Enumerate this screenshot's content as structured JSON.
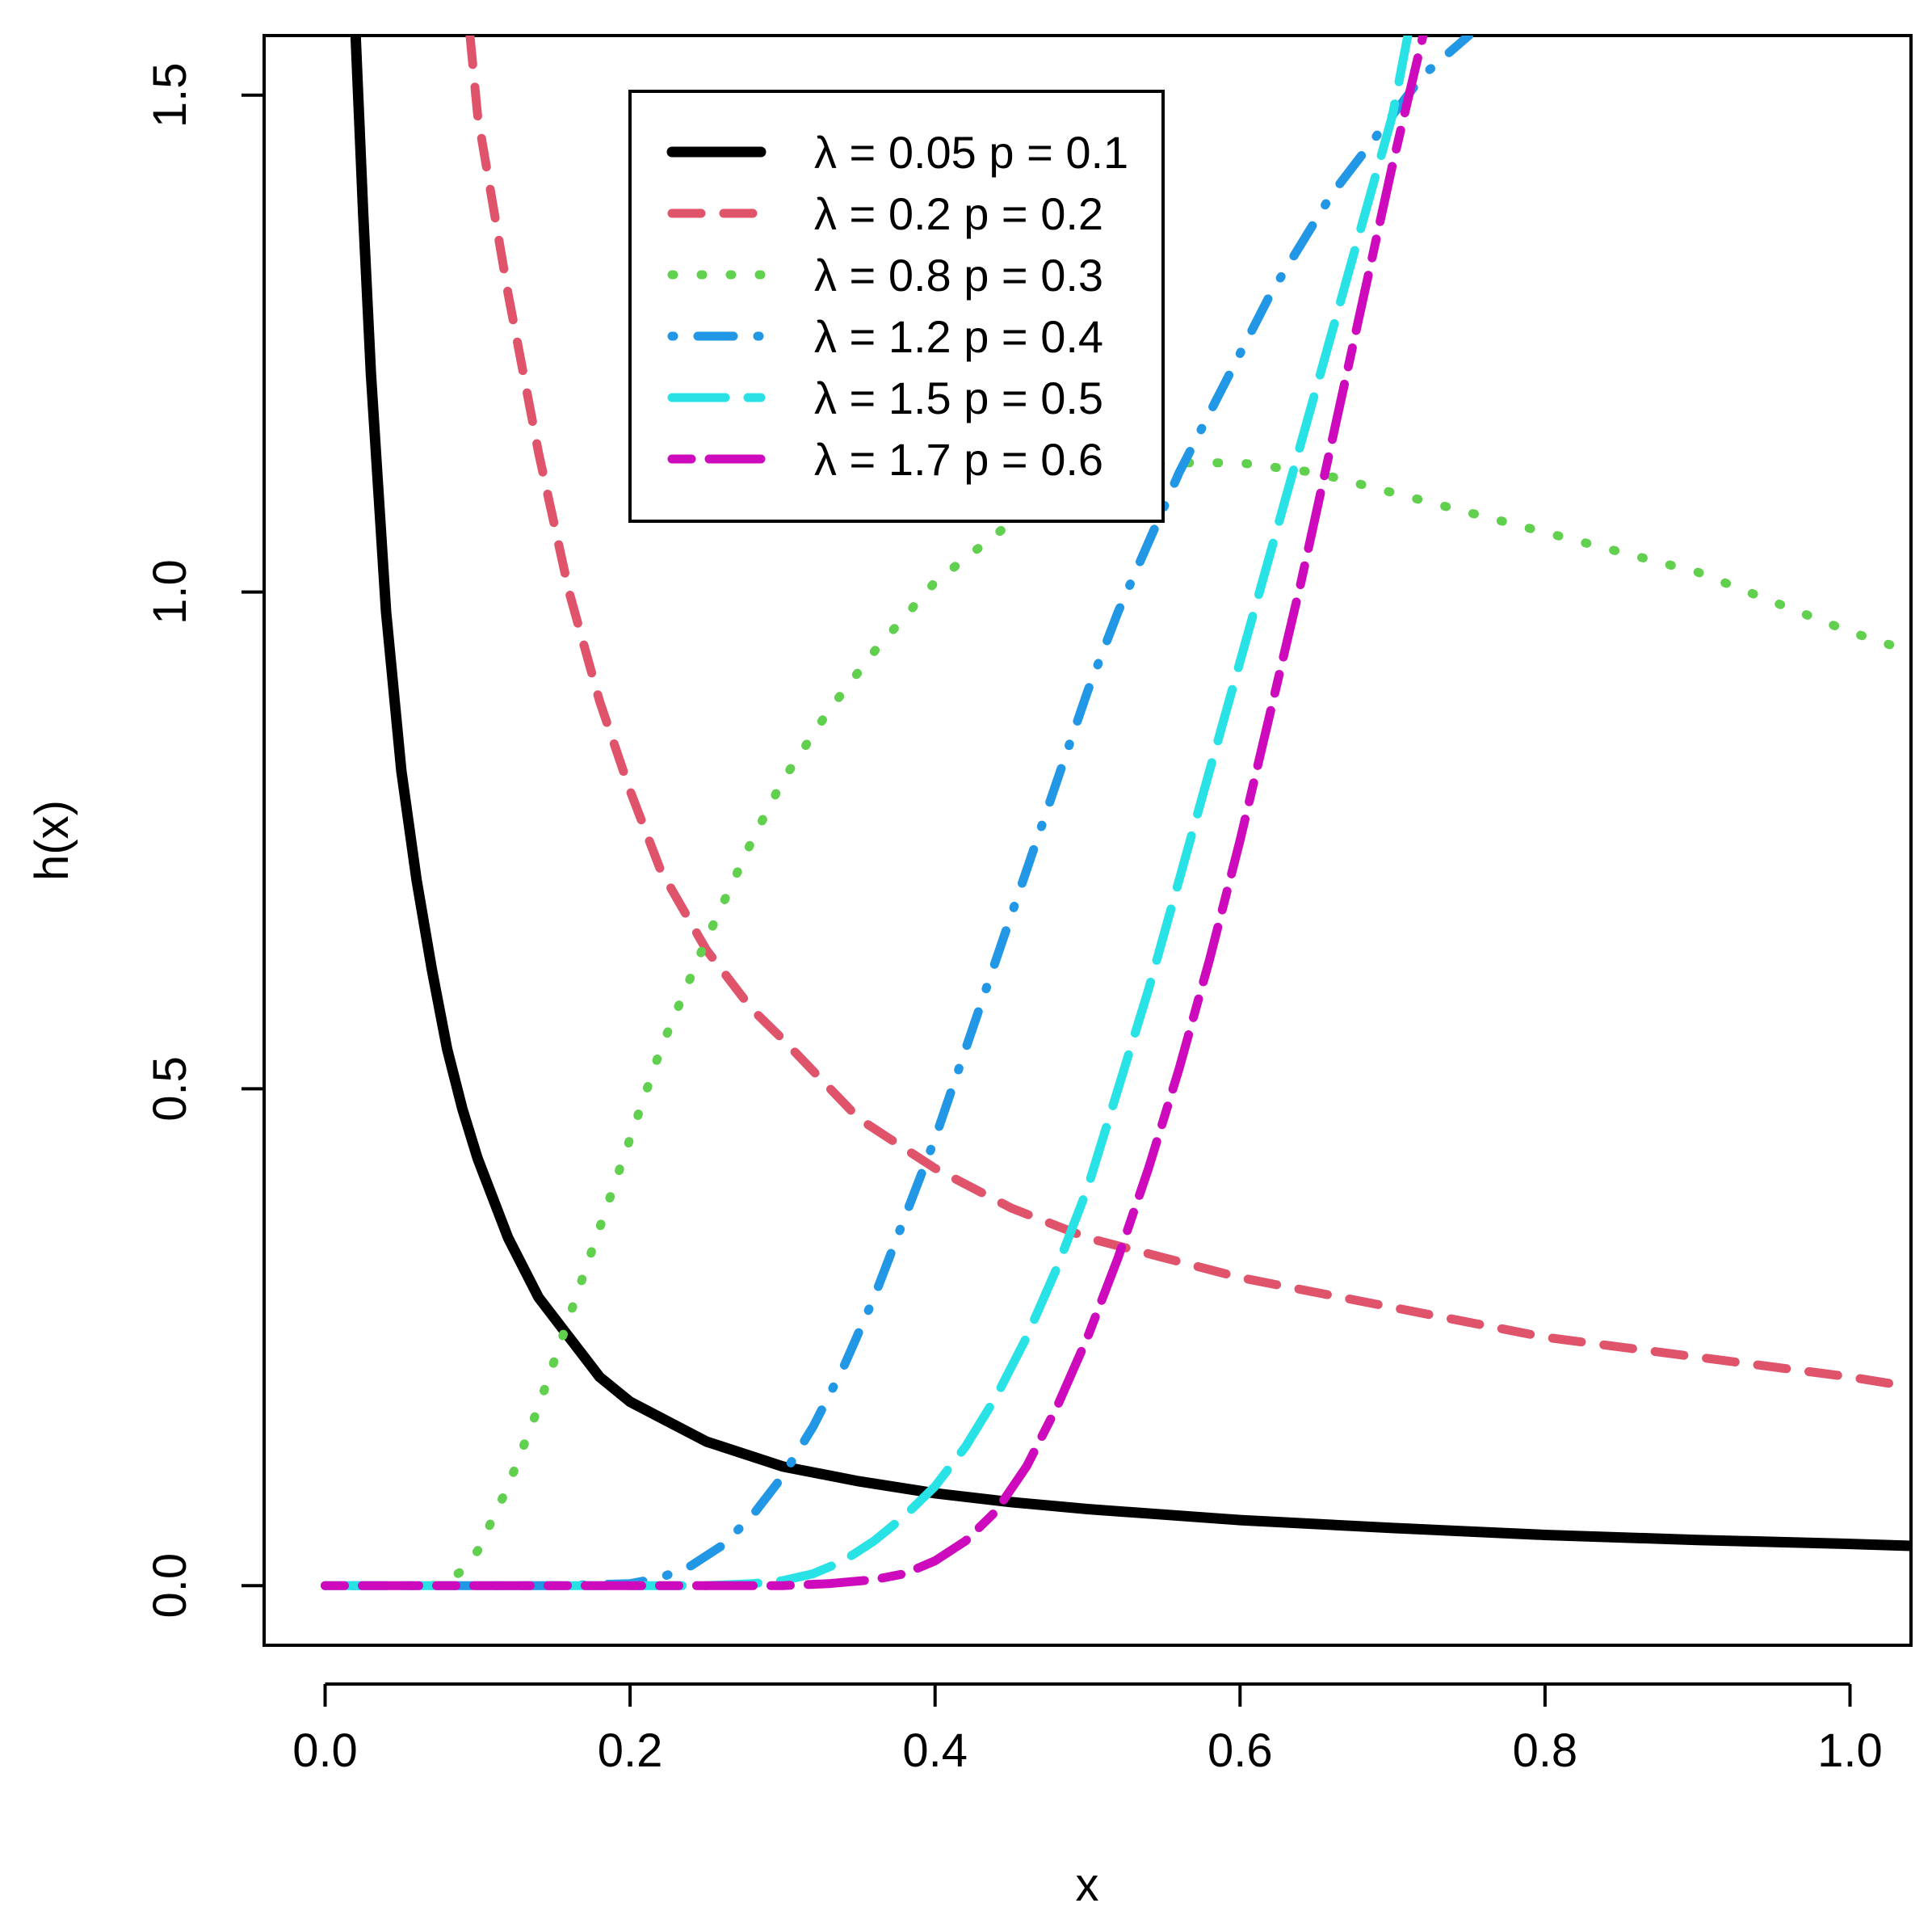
{
  "chart_data": {
    "type": "line",
    "title": "",
    "xlabel": "x",
    "ylabel": "h(x)",
    "xlim": [
      -0.04,
      1.04
    ],
    "ylim": [
      -0.06,
      1.56
    ],
    "xticks": [
      0.0,
      0.2,
      0.4,
      0.6,
      0.8,
      1.0
    ],
    "xtick_labels": [
      "0.0",
      "0.2",
      "0.4",
      "0.6",
      "0.8",
      "1.0"
    ],
    "yticks": [
      0.0,
      0.5,
      1.0,
      1.5
    ],
    "ytick_labels": [
      "0.0",
      "0.5",
      "1.0",
      "1.5"
    ],
    "grid": false,
    "legend_position": "top-center",
    "series": [
      {
        "name": "λ = 0.05  p = 0.1",
        "color": "#000000",
        "dash": "solid",
        "x": [
          0.02,
          0.025,
          0.03,
          0.04,
          0.05,
          0.06,
          0.07,
          0.08,
          0.09,
          0.1,
          0.12,
          0.14,
          0.16,
          0.18,
          0.2,
          0.25,
          0.3,
          0.35,
          0.4,
          0.45,
          0.5,
          0.6,
          0.7,
          0.8,
          0.9,
          1.0,
          1.04
        ],
        "y": [
          1.56,
          1.38,
          1.22,
          0.98,
          0.82,
          0.71,
          0.62,
          0.54,
          0.48,
          0.43,
          0.35,
          0.29,
          0.25,
          0.21,
          0.185,
          0.145,
          0.12,
          0.105,
          0.093,
          0.084,
          0.077,
          0.066,
          0.058,
          0.051,
          0.046,
          0.042,
          0.04
        ]
      },
      {
        "name": "λ = 0.2  p = 0.2",
        "color": "#DF536B",
        "dash": "dashed",
        "x": [
          0.095,
          0.1,
          0.11,
          0.12,
          0.14,
          0.16,
          0.18,
          0.2,
          0.22,
          0.25,
          0.28,
          0.3,
          0.35,
          0.4,
          0.45,
          0.5,
          0.55,
          0.6,
          0.7,
          0.8,
          0.9,
          1.0,
          1.04
        ],
        "y": [
          1.56,
          1.48,
          1.39,
          1.3,
          1.14,
          1.0,
          0.89,
          0.8,
          0.72,
          0.64,
          0.58,
          0.55,
          0.47,
          0.42,
          0.38,
          0.35,
          0.33,
          0.31,
          0.28,
          0.25,
          0.23,
          0.21,
          0.2
        ]
      },
      {
        "name": "λ = 0.8  p = 0.3",
        "color": "#61D04F",
        "dash": "dotted",
        "x": [
          0.07,
          0.08,
          0.09,
          0.1,
          0.12,
          0.14,
          0.16,
          0.18,
          0.2,
          0.22,
          0.25,
          0.28,
          0.3,
          0.33,
          0.36,
          0.4,
          0.45,
          0.5,
          0.55,
          0.6,
          0.65,
          0.7,
          0.75,
          0.8,
          0.85,
          0.9,
          0.95,
          1.0,
          1.04
        ],
        "y": [
          0.0,
          0.005,
          0.015,
          0.035,
          0.1,
          0.18,
          0.27,
          0.36,
          0.45,
          0.54,
          0.65,
          0.75,
          0.81,
          0.88,
          0.94,
          1.01,
          1.07,
          1.11,
          1.13,
          1.13,
          1.12,
          1.1,
          1.08,
          1.06,
          1.04,
          1.02,
          0.99,
          0.96,
          0.94
        ]
      },
      {
        "name": "λ = 1.2  p = 0.4",
        "color": "#2297E6",
        "dash": "dotdash",
        "x": [
          0.0,
          0.15,
          0.2,
          0.22,
          0.24,
          0.26,
          0.28,
          0.3,
          0.32,
          0.34,
          0.36,
          0.38,
          0.4,
          0.42,
          0.44,
          0.46,
          0.48,
          0.5,
          0.52,
          0.54,
          0.56,
          0.58,
          0.6,
          0.62,
          0.64,
          0.66,
          0.68,
          0.7,
          0.72,
          0.75
        ],
        "y": [
          0.0,
          0.0,
          0.002,
          0.008,
          0.02,
          0.04,
          0.07,
          0.11,
          0.16,
          0.22,
          0.29,
          0.37,
          0.45,
          0.54,
          0.63,
          0.72,
          0.81,
          0.9,
          0.98,
          1.05,
          1.12,
          1.18,
          1.24,
          1.3,
          1.35,
          1.4,
          1.44,
          1.48,
          1.52,
          1.56
        ]
      },
      {
        "name": "λ = 1.5  p = 0.5",
        "color": "#28E2E5",
        "dash": "longdash",
        "x": [
          0.0,
          0.25,
          0.28,
          0.3,
          0.32,
          0.34,
          0.36,
          0.38,
          0.4,
          0.42,
          0.44,
          0.46,
          0.48,
          0.5,
          0.52,
          0.54,
          0.56,
          0.58,
          0.6,
          0.62,
          0.64,
          0.66,
          0.68,
          0.7,
          0.71
        ],
        "y": [
          0.0,
          0.0,
          0.002,
          0.005,
          0.012,
          0.025,
          0.045,
          0.07,
          0.1,
          0.14,
          0.19,
          0.25,
          0.32,
          0.4,
          0.5,
          0.6,
          0.71,
          0.82,
          0.93,
          1.04,
          1.15,
          1.26,
          1.37,
          1.48,
          1.56
        ]
      },
      {
        "name": "λ = 1.7  p = 0.6",
        "color": "#CD0BBC",
        "dash": "twodash",
        "x": [
          0.0,
          0.3,
          0.33,
          0.36,
          0.38,
          0.4,
          0.42,
          0.44,
          0.46,
          0.48,
          0.5,
          0.52,
          0.54,
          0.56,
          0.58,
          0.6,
          0.62,
          0.64,
          0.66,
          0.68,
          0.7,
          0.72
        ],
        "y": [
          0.0,
          0.0,
          0.002,
          0.006,
          0.012,
          0.025,
          0.045,
          0.075,
          0.12,
          0.18,
          0.25,
          0.33,
          0.42,
          0.52,
          0.63,
          0.75,
          0.88,
          1.01,
          1.15,
          1.29,
          1.43,
          1.56
        ]
      }
    ]
  }
}
